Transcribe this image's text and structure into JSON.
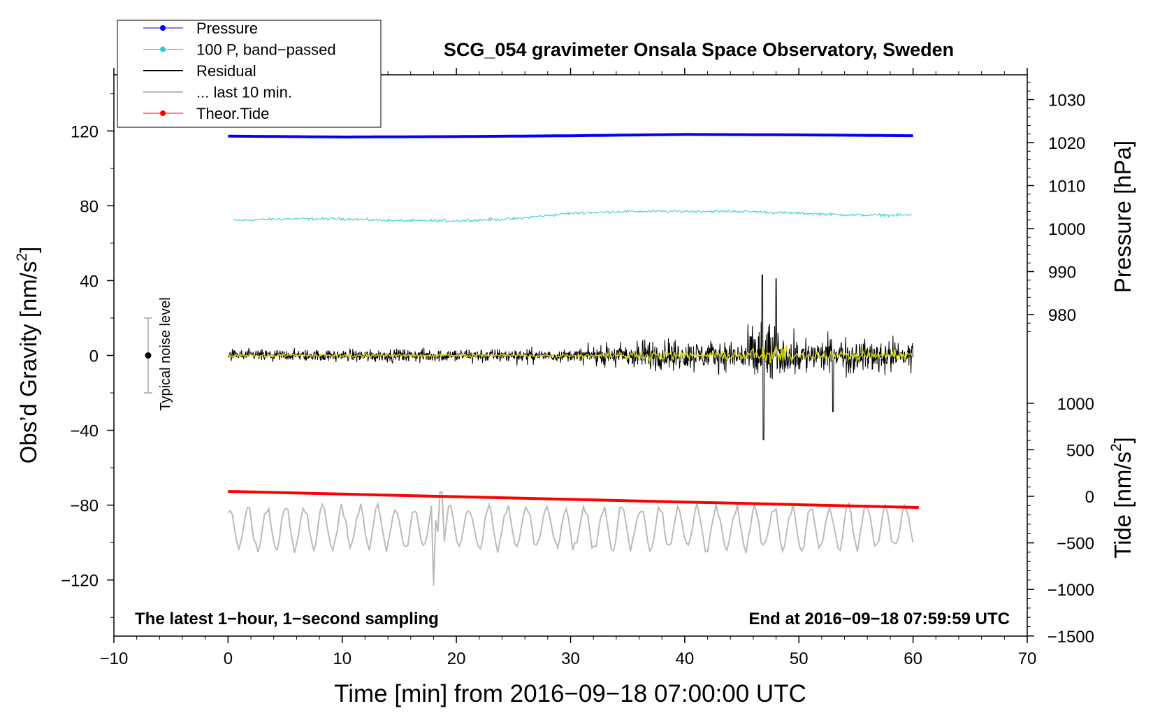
{
  "chart_data": {
    "type": "line",
    "title": "SCG_054 gravimeter Onsala Space Observatory, Sweden",
    "xlabel": "Time [min] from 2016−09−18 07:00:00 UTC",
    "ylabel_left_main": "Obs’d Gravity [nm/s",
    "ylabel_left_sup": "2",
    "ylabel_left_end": "]",
    "ylabel_right_top": "Pressure [hPa]",
    "ylabel_right_bottom_main": "Tide [nm/s",
    "ylabel_right_bottom_sup": "2",
    "ylabel_right_bottom_end": "]",
    "xlim": [
      -10,
      70
    ],
    "ylim": [
      -150,
      150
    ],
    "x_ticks": [
      -10,
      0,
      10,
      20,
      30,
      40,
      50,
      60,
      70
    ],
    "x_tick_labels": [
      "−10",
      "0",
      "10",
      "20",
      "30",
      "40",
      "50",
      "60",
      "70"
    ],
    "y_ticks": [
      120,
      80,
      40,
      0,
      -40,
      -80,
      -120
    ],
    "y_tick_labels": [
      "120",
      "80",
      "40",
      "0",
      "−40",
      "−80",
      "−120"
    ],
    "pressure_axis": {
      "ticks": [
        1030,
        1020,
        1010,
        1000,
        990,
        980
      ],
      "tick_labels": [
        "1030",
        "1020",
        "1010",
        "1000",
        "990",
        "980"
      ]
    },
    "tide_axis": {
      "ticks": [
        1000,
        500,
        0,
        -500,
        -1000,
        -1500
      ],
      "tick_labels": [
        "1000",
        "500",
        "0",
        "−500",
        "−1000",
        "−1500"
      ]
    },
    "legend": [
      {
        "label": "Pressure",
        "color": "#0000ff",
        "marker": true
      },
      {
        "label": "100 P, band−passed",
        "color": "#33cccc",
        "marker": true
      },
      {
        "label": "Residual",
        "color": "#000000",
        "marker": false
      },
      {
        "label": "... last 10 min.",
        "color": "#bbbbbb",
        "marker": false
      },
      {
        "label": "Theor.Tide",
        "color": "#ff0000",
        "marker": true
      }
    ],
    "series": [
      {
        "name": "Pressure",
        "color": "#0000ff",
        "x": [
          0,
          10,
          20,
          30,
          40,
          50,
          60
        ],
        "values": [
          1021.5,
          1021.3,
          1021.4,
          1021.6,
          1021.9,
          1021.8,
          1021.6
        ]
      },
      {
        "name": "100 P, band−passed",
        "color": "#33cccc",
        "x": [
          0,
          5,
          10,
          15,
          20,
          25,
          30,
          35,
          40,
          45,
          50,
          55,
          60
        ],
        "values": [
          72,
          73,
          73,
          72,
          72,
          73,
          76,
          77,
          77,
          77,
          76,
          75,
          75
        ]
      },
      {
        "name": "Residual",
        "color": "#000000",
        "x_range": [
          0,
          60
        ],
        "amplitude_by_segment": [
          [
            0,
            5
          ],
          [
            10,
            5
          ],
          [
            20,
            6
          ],
          [
            30,
            5
          ],
          [
            37,
            14
          ],
          [
            45,
            12
          ],
          [
            47,
            40
          ],
          [
            48,
            20
          ],
          [
            50,
            14
          ],
          [
            60,
            14
          ]
        ]
      },
      {
        "name": "... last 10 min.",
        "color": "#bbbbbb",
        "x_range": [
          0,
          60
        ],
        "baseline": -92,
        "range": [
          -123,
          -73
        ]
      },
      {
        "name": "Theor.Tide",
        "color": "#ff0000",
        "x": [
          0,
          60.5
        ],
        "values": [
          0,
          -75
        ]
      }
    ],
    "noise_marker": {
      "label": "Typical noise level",
      "x": -7,
      "value": 0,
      "range": [
        -20,
        20
      ]
    },
    "annotation_left": "The latest 1−hour, 1−second sampling",
    "annotation_right": "End at 2016−09−18 07:59:59 UTC"
  }
}
